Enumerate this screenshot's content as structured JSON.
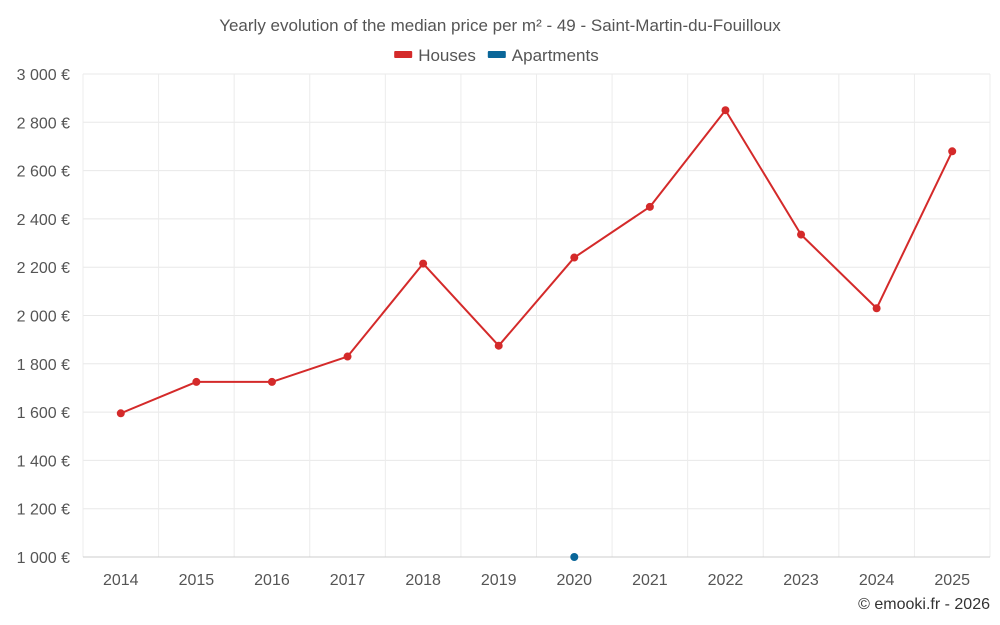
{
  "chart_data": {
    "type": "line",
    "title": "Yearly evolution of the median price per m² - 49 - Saint-Martin-du-Fouilloux",
    "categories": [
      "2014",
      "2015",
      "2016",
      "2017",
      "2018",
      "2019",
      "2020",
      "2021",
      "2022",
      "2023",
      "2024",
      "2025"
    ],
    "series": [
      {
        "name": "Houses",
        "color": "#d42a2a",
        "values": [
          1595,
          1725,
          1725,
          1830,
          2215,
          1875,
          2240,
          2450,
          2850,
          2335,
          2030,
          2680
        ]
      },
      {
        "name": "Apartments",
        "color": "#0a6699",
        "values": [
          null,
          null,
          null,
          null,
          null,
          null,
          1000,
          null,
          null,
          null,
          null,
          null
        ]
      }
    ],
    "ylim": [
      1000,
      3000
    ],
    "yticks": [
      1000,
      1200,
      1400,
      1600,
      1800,
      2000,
      2200,
      2400,
      2600,
      2800,
      3000
    ],
    "ytick_labels": [
      "1 000 €",
      "1 200 €",
      "1 400 €",
      "1 600 €",
      "1 800 €",
      "2 000 €",
      "2 200 €",
      "2 400 €",
      "2 600 €",
      "2 800 €",
      "3 000 €"
    ],
    "xlabel": "",
    "ylabel": "",
    "legend": "top-center",
    "grid": true
  },
  "credit": "© emooki.fr - 2026"
}
